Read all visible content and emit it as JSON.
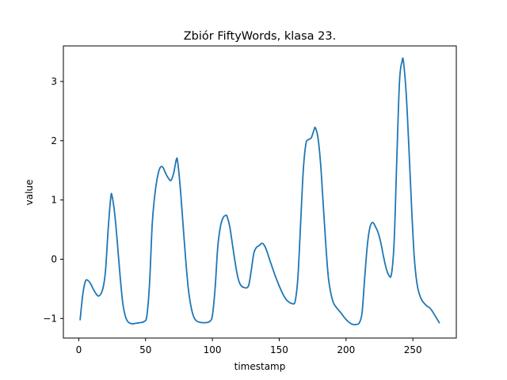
{
  "chart_data": {
    "type": "line",
    "title": "Zbiór FiftyWords, klasa 23.",
    "xlabel": "timestamp",
    "ylabel": "value",
    "xlim": [
      -11.5,
      282.5
    ],
    "ylim": [
      -1.33,
      3.6
    ],
    "xticks": [
      0,
      50,
      100,
      150,
      200,
      250
    ],
    "yticks": [
      -1,
      0,
      1,
      2,
      3
    ],
    "xtick_labels": [
      "0",
      "50",
      "100",
      "150",
      "200",
      "250"
    ],
    "ytick_labels": [
      "−1",
      "0",
      "1",
      "2",
      "3"
    ],
    "grid": false,
    "line_color": "#1f77b4",
    "series": [
      {
        "name": "",
        "x": [
          1,
          3,
          5,
          7,
          9,
          12,
          15,
          18,
          20,
          22,
          24,
          25,
          27,
          29,
          31,
          33,
          35,
          37,
          40,
          43,
          46,
          49,
          51,
          53,
          55,
          57,
          59,
          61,
          63,
          65,
          67,
          69,
          71,
          73,
          74,
          76,
          78,
          80,
          82,
          84,
          86,
          88,
          90,
          92,
          95,
          98,
          100,
          102,
          104,
          106,
          108,
          110,
          111,
          113,
          115,
          117,
          119,
          121,
          124,
          127,
          129,
          131,
          133,
          135,
          137,
          139,
          141,
          143,
          145,
          147,
          150,
          153,
          156,
          160,
          162,
          164,
          166,
          168,
          170,
          172,
          174,
          176,
          177,
          179,
          181,
          183,
          185,
          187,
          190,
          193,
          196,
          199,
          202,
          205,
          208,
          210,
          212,
          214,
          216,
          218,
          220,
          222,
          224,
          226,
          228,
          230,
          232,
          234,
          236,
          238,
          240,
          242,
          243,
          245,
          247,
          249,
          251,
          253,
          255,
          257,
          260,
          263,
          266,
          270
        ],
        "y": [
          -1.03,
          -0.6,
          -0.37,
          -0.36,
          -0.42,
          -0.55,
          -0.62,
          -0.5,
          -0.2,
          0.5,
          1.05,
          1.06,
          0.75,
          0.25,
          -0.3,
          -0.75,
          -0.97,
          -1.06,
          -1.09,
          -1.08,
          -1.07,
          -1.05,
          -0.95,
          -0.4,
          0.6,
          1.1,
          1.4,
          1.55,
          1.55,
          1.45,
          1.37,
          1.33,
          1.45,
          1.68,
          1.65,
          1.2,
          0.6,
          0.0,
          -0.5,
          -0.8,
          -0.97,
          -1.04,
          -1.06,
          -1.07,
          -1.07,
          -1.05,
          -0.95,
          -0.5,
          0.2,
          0.55,
          0.7,
          0.74,
          0.72,
          0.55,
          0.25,
          -0.05,
          -0.3,
          -0.43,
          -0.48,
          -0.45,
          -0.2,
          0.1,
          0.2,
          0.23,
          0.27,
          0.23,
          0.12,
          -0.02,
          -0.15,
          -0.28,
          -0.45,
          -0.6,
          -0.7,
          -0.75,
          -0.7,
          -0.3,
          0.6,
          1.5,
          1.95,
          2.02,
          2.05,
          2.18,
          2.22,
          2.05,
          1.6,
          0.9,
          0.2,
          -0.35,
          -0.7,
          -0.82,
          -0.9,
          -0.99,
          -1.06,
          -1.1,
          -1.1,
          -1.07,
          -0.9,
          -0.3,
          0.25,
          0.55,
          0.62,
          0.55,
          0.45,
          0.28,
          0.05,
          -0.15,
          -0.27,
          -0.25,
          0.3,
          1.7,
          3.0,
          3.35,
          3.33,
          2.8,
          1.9,
          0.9,
          0.05,
          -0.4,
          -0.6,
          -0.7,
          -0.78,
          -0.83,
          -0.93,
          -1.08
        ]
      }
    ]
  }
}
